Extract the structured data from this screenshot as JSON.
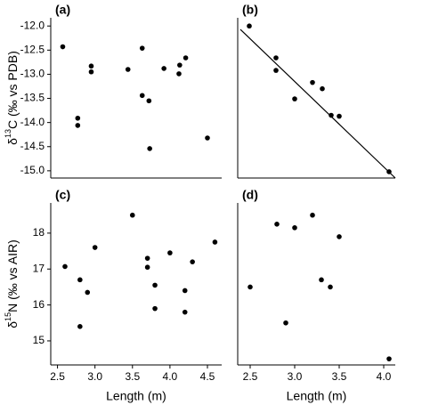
{
  "chart_data": [
    {
      "type": "scatter",
      "title": "(a)",
      "ylabel": {
        "prefix": "δ",
        "sup": "13",
        "rest": "C (‰ vs PDB)"
      },
      "x": [
        2.57,
        2.95,
        2.95,
        2.77,
        2.77,
        3.44,
        3.63,
        3.63,
        3.72,
        3.73,
        3.92,
        4.13,
        4.12,
        4.21,
        4.5
      ],
      "y": [
        -12.43,
        -12.83,
        -12.95,
        -13.91,
        -14.06,
        -12.9,
        -12.46,
        -13.44,
        -13.55,
        -14.54,
        -12.88,
        -12.81,
        -12.99,
        -12.66,
        -14.32
      ],
      "xlim": [
        2.41,
        4.69
      ],
      "ylim": [
        -15.15,
        -11.83
      ],
      "yticks": [
        {
          "value": -12,
          "label": "-12.0"
        },
        -12.5,
        {
          "value": -13,
          "label": "-13.0"
        },
        -13.5,
        {
          "value": -14,
          "label": "-14.0"
        },
        -14.5,
        {
          "value": -15,
          "label": "-15.0"
        }
      ],
      "color": "#000000"
    },
    {
      "type": "scatter",
      "title": "(b)",
      "x": [
        2.49,
        2.79,
        2.79,
        3.0,
        3.2,
        3.31,
        3.41,
        3.5,
        4.06
      ],
      "y": [
        -12.0,
        -12.66,
        -12.92,
        -13.51,
        -13.17,
        -13.3,
        -13.85,
        -13.87,
        -15.02
      ],
      "fit_line": {
        "x": [
          2.39,
          4.13
        ],
        "y": [
          -12.07,
          -15.15
        ]
      },
      "xlim": [
        2.36,
        4.13
      ],
      "ylim": [
        -15.15,
        -11.83
      ],
      "color": "#000000"
    },
    {
      "type": "scatter",
      "title": "(c)",
      "ylabel": {
        "prefix": "δ",
        "sup": "15",
        "rest": "N (‰ vs AIR)"
      },
      "xlabel": "Length (m)",
      "x": [
        2.6,
        2.8,
        2.9,
        2.8,
        3.0,
        3.5,
        3.7,
        3.7,
        3.8,
        3.8,
        4.0,
        4.2,
        4.2,
        4.3,
        4.6
      ],
      "y": [
        17.07,
        16.7,
        16.35,
        15.4,
        17.6,
        18.5,
        17.3,
        17.05,
        16.55,
        15.9,
        17.45,
        16.4,
        15.8,
        17.2,
        17.75
      ],
      "xlim": [
        2.41,
        4.69
      ],
      "ylim": [
        14.33,
        18.84
      ],
      "xticks": [
        2.5,
        {
          "value": 3,
          "label": "3.0"
        },
        3.5,
        {
          "value": 4,
          "label": "4.0"
        },
        4.5
      ],
      "yticks": [
        15,
        16,
        17,
        18
      ],
      "color": "#000000"
    },
    {
      "type": "scatter",
      "title": "(d)",
      "xlabel": "Length (m)",
      "x": [
        2.5,
        2.8,
        2.9,
        3.0,
        3.2,
        3.3,
        3.4,
        3.5,
        4.06
      ],
      "y": [
        16.5,
        18.25,
        15.5,
        18.15,
        18.5,
        16.7,
        16.5,
        17.9,
        14.5
      ],
      "xlim": [
        2.36,
        4.13
      ],
      "ylim": [
        14.33,
        18.84
      ],
      "xticks": [
        2.5,
        {
          "value": 3,
          "label": "3.0"
        },
        3.5,
        {
          "value": 4,
          "label": "4.0"
        }
      ],
      "color": "#000000"
    }
  ]
}
